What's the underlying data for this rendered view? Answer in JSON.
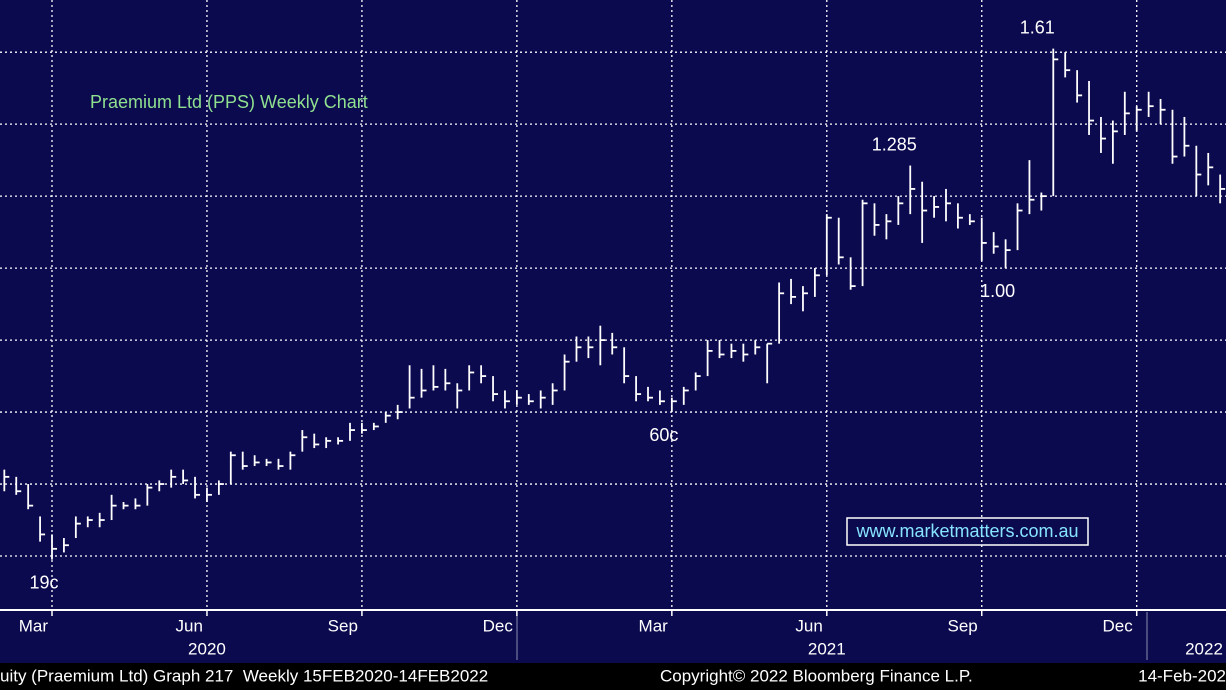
{
  "chart_data": {
    "type": "hlc",
    "title": "Praemium Ltd (PPS) Weekly Chart",
    "watermark": "www.marketmatters.com.au",
    "footer_left": "uity (Praemium Ltd) Graph 217  Weekly 15FEB2020-14FEB2022",
    "footer_center": "Copyright© 2022 Bloomberg Finance L.P.",
    "footer_right": "14-Feb-202",
    "categories": [
      null,
      null,
      null,
      null,
      "Mar",
      null,
      null,
      null,
      null,
      null,
      null,
      null,
      null,
      null,
      null,
      null,
      null,
      "Jun",
      null,
      null,
      null,
      null,
      null,
      null,
      null,
      null,
      null,
      null,
      null,
      null,
      "Sep",
      null,
      null,
      null,
      null,
      null,
      null,
      null,
      null,
      null,
      null,
      null,
      null,
      "Dec",
      null,
      null,
      null,
      null,
      null,
      null,
      null,
      null,
      null,
      null,
      null,
      null,
      "Mar",
      null,
      null,
      null,
      null,
      null,
      null,
      null,
      null,
      null,
      null,
      null,
      null,
      "Jun",
      null,
      null,
      null,
      null,
      null,
      null,
      null,
      null,
      null,
      null,
      null,
      null,
      "Sep",
      null,
      null,
      null,
      null,
      null,
      null,
      null,
      null,
      null,
      null,
      null,
      null,
      "Dec",
      null,
      null,
      null,
      null,
      null,
      null,
      null
    ],
    "category_years": [
      null,
      null,
      null,
      null,
      null,
      null,
      null,
      null,
      null,
      null,
      null,
      null,
      null,
      null,
      null,
      null,
      null,
      "2020",
      null,
      null,
      null,
      null,
      null,
      null,
      null,
      null,
      null,
      null,
      null,
      null,
      null,
      null,
      null,
      null,
      null,
      null,
      null,
      null,
      null,
      null,
      null,
      null,
      null,
      null,
      null,
      null,
      null,
      null,
      null,
      null,
      null,
      null,
      null,
      null,
      null,
      null,
      null,
      null,
      null,
      null,
      null,
      null,
      null,
      null,
      null,
      null,
      null,
      null,
      null,
      "2021",
      null,
      null,
      null,
      null,
      null,
      null,
      null,
      null,
      null,
      null,
      null,
      null,
      null,
      null,
      null,
      null,
      null,
      null,
      null,
      null,
      null,
      null,
      null,
      null,
      null,
      null,
      null,
      null,
      null,
      null,
      null,
      "2022",
      null
    ],
    "high": [
      0.44,
      0.42,
      0.4,
      0.31,
      0.26,
      0.25,
      0.31,
      0.31,
      0.32,
      0.37,
      0.35,
      0.36,
      0.4,
      0.41,
      0.44,
      0.44,
      0.42,
      0.39,
      0.41,
      0.49,
      0.49,
      0.48,
      0.47,
      0.47,
      0.49,
      0.55,
      0.54,
      0.53,
      0.53,
      0.57,
      0.57,
      0.57,
      0.6,
      0.62,
      0.73,
      0.72,
      0.73,
      0.72,
      0.68,
      0.73,
      0.73,
      0.7,
      0.66,
      0.66,
      0.65,
      0.66,
      0.68,
      0.76,
      0.81,
      0.81,
      0.84,
      0.82,
      0.78,
      0.7,
      0.67,
      0.66,
      0.64,
      0.67,
      0.71,
      0.8,
      0.8,
      0.79,
      0.79,
      0.8,
      0.79,
      0.96,
      0.97,
      0.95,
      1.0,
      1.15,
      1.14,
      1.03,
      1.19,
      1.18,
      1.15,
      1.2,
      1.285,
      1.24,
      1.2,
      1.22,
      1.18,
      1.15,
      1.14,
      1.1,
      1.08,
      1.18,
      1.3,
      1.21,
      1.61,
      1.6,
      1.55,
      1.52,
      1.42,
      1.41,
      1.49,
      1.45,
      1.49,
      1.47,
      1.44,
      1.42,
      1.34,
      1.32,
      1.26
    ],
    "low": [
      0.38,
      0.37,
      0.33,
      0.24,
      0.19,
      0.21,
      0.25,
      0.28,
      0.28,
      0.3,
      0.33,
      0.33,
      0.34,
      0.38,
      0.39,
      0.4,
      0.36,
      0.35,
      0.37,
      0.4,
      0.44,
      0.45,
      0.45,
      0.44,
      0.44,
      0.49,
      0.5,
      0.5,
      0.51,
      0.52,
      0.54,
      0.55,
      0.57,
      0.58,
      0.61,
      0.64,
      0.66,
      0.66,
      0.61,
      0.66,
      0.68,
      0.63,
      0.61,
      0.62,
      0.62,
      0.61,
      0.62,
      0.66,
      0.74,
      0.75,
      0.73,
      0.76,
      0.68,
      0.63,
      0.63,
      0.62,
      0.6,
      0.62,
      0.66,
      0.7,
      0.75,
      0.75,
      0.74,
      0.76,
      0.68,
      0.79,
      0.9,
      0.88,
      0.92,
      0.98,
      1.01,
      0.94,
      0.95,
      1.09,
      1.08,
      1.12,
      1.15,
      1.07,
      1.14,
      1.13,
      1.11,
      1.12,
      1.02,
      1.04,
      1.0,
      1.05,
      1.15,
      1.16,
      1.2,
      1.53,
      1.46,
      1.37,
      1.32,
      1.29,
      1.37,
      1.38,
      1.42,
      1.4,
      1.29,
      1.31,
      1.2,
      1.23,
      1.18
    ],
    "close": [
      0.42,
      0.38,
      0.34,
      0.26,
      0.22,
      0.23,
      0.29,
      0.3,
      0.3,
      0.34,
      0.34,
      0.34,
      0.39,
      0.4,
      0.42,
      0.41,
      0.37,
      0.37,
      0.4,
      0.48,
      0.45,
      0.46,
      0.46,
      0.45,
      0.48,
      0.53,
      0.51,
      0.52,
      0.52,
      0.55,
      0.55,
      0.56,
      0.59,
      0.6,
      0.64,
      0.66,
      0.67,
      0.68,
      0.66,
      0.71,
      0.7,
      0.65,
      0.63,
      0.64,
      0.63,
      0.64,
      0.66,
      0.74,
      0.78,
      0.78,
      0.8,
      0.78,
      0.7,
      0.65,
      0.64,
      0.63,
      0.63,
      0.66,
      0.7,
      0.77,
      0.76,
      0.77,
      0.76,
      0.78,
      0.79,
      0.93,
      0.92,
      0.93,
      0.98,
      1.14,
      1.03,
      0.95,
      1.18,
      1.12,
      1.13,
      1.18,
      1.22,
      1.16,
      1.17,
      1.18,
      1.14,
      1.13,
      1.07,
      1.06,
      1.05,
      1.16,
      1.19,
      1.2,
      1.58,
      1.55,
      1.48,
      1.41,
      1.36,
      1.38,
      1.43,
      1.44,
      1.45,
      1.44,
      1.31,
      1.34,
      1.26,
      1.28,
      1.22
    ],
    "color": "#ffffff",
    "annotations": [
      {
        "label": "1.61",
        "value": 1.61
      },
      {
        "label": "1.285",
        "value": 1.285
      },
      {
        "label": "1.00",
        "value": 1.0
      },
      {
        "label": "60c",
        "value": 0.6
      },
      {
        "label": "19c",
        "value": 0.19
      }
    ],
    "ylim": [
      0.05,
      1.745
    ],
    "yticks": [
      0.2,
      0.4,
      0.6,
      0.8,
      1.0,
      1.2,
      1.4,
      1.6
    ],
    "grid": true
  }
}
